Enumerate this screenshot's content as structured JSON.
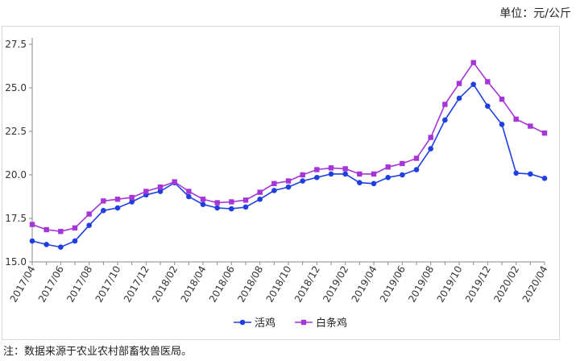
{
  "unit_label": "单位：元/公斤",
  "source_note": "注：数据来源于农业农村部畜牧兽医局。",
  "chart_data": {
    "type": "line",
    "title": "",
    "xlabel": "",
    "ylabel": "",
    "ylim": [
      15.0,
      27.5
    ],
    "yticks": [
      "15.0",
      "17.5",
      "20.0",
      "22.5",
      "25.0",
      "27.5"
    ],
    "grid": false,
    "legend_position": "bottom",
    "x": [
      "2017/04",
      "2017/05",
      "2017/06",
      "2017/07",
      "2017/08",
      "2017/09",
      "2017/10",
      "2017/11",
      "2017/12",
      "2018/01",
      "2018/02",
      "2018/03",
      "2018/04",
      "2018/05",
      "2018/06",
      "2018/07",
      "2018/08",
      "2018/09",
      "2018/10",
      "2018/11",
      "2018/12",
      "2019/01",
      "2019/02",
      "2019/03",
      "2019/04",
      "2019/05",
      "2019/06",
      "2019/07",
      "2019/08",
      "2019/09",
      "2019/10",
      "2019/11",
      "2019/12",
      "2020/01",
      "2020/02",
      "2020/03",
      "2020/04"
    ],
    "xtick_labels": [
      "2017/04",
      "2017/06",
      "2017/08",
      "2017/10",
      "2017/12",
      "2018/02",
      "2018/04",
      "2018/06",
      "2018/08",
      "2018/10",
      "2018/12",
      "2019/02",
      "2019/04",
      "2019/06",
      "2019/08",
      "2019/10",
      "2019/12",
      "2020/02",
      "2020/04"
    ],
    "series": [
      {
        "name": "活鸡",
        "color": "#1f3fe0",
        "marker": "circle",
        "values": [
          16.2,
          16.0,
          15.85,
          16.2,
          17.1,
          17.95,
          18.1,
          18.45,
          18.85,
          19.05,
          19.55,
          18.75,
          18.3,
          18.1,
          18.05,
          18.15,
          18.6,
          19.1,
          19.3,
          19.65,
          19.85,
          20.05,
          20.05,
          19.55,
          19.5,
          19.85,
          20.0,
          20.3,
          21.5,
          23.15,
          24.4,
          25.2,
          23.95,
          22.9,
          20.1,
          20.05,
          19.8
        ]
      },
      {
        "name": "白条鸡",
        "color": "#a535d6",
        "marker": "square",
        "values": [
          17.15,
          16.85,
          16.75,
          16.95,
          17.75,
          18.5,
          18.6,
          18.7,
          19.05,
          19.3,
          19.6,
          19.05,
          18.6,
          18.4,
          18.45,
          18.55,
          19.0,
          19.5,
          19.65,
          20.0,
          20.3,
          20.4,
          20.35,
          20.05,
          20.05,
          20.45,
          20.65,
          20.95,
          22.15,
          24.05,
          25.25,
          26.45,
          25.35,
          24.35,
          23.2,
          22.8,
          22.4
        ]
      }
    ]
  }
}
